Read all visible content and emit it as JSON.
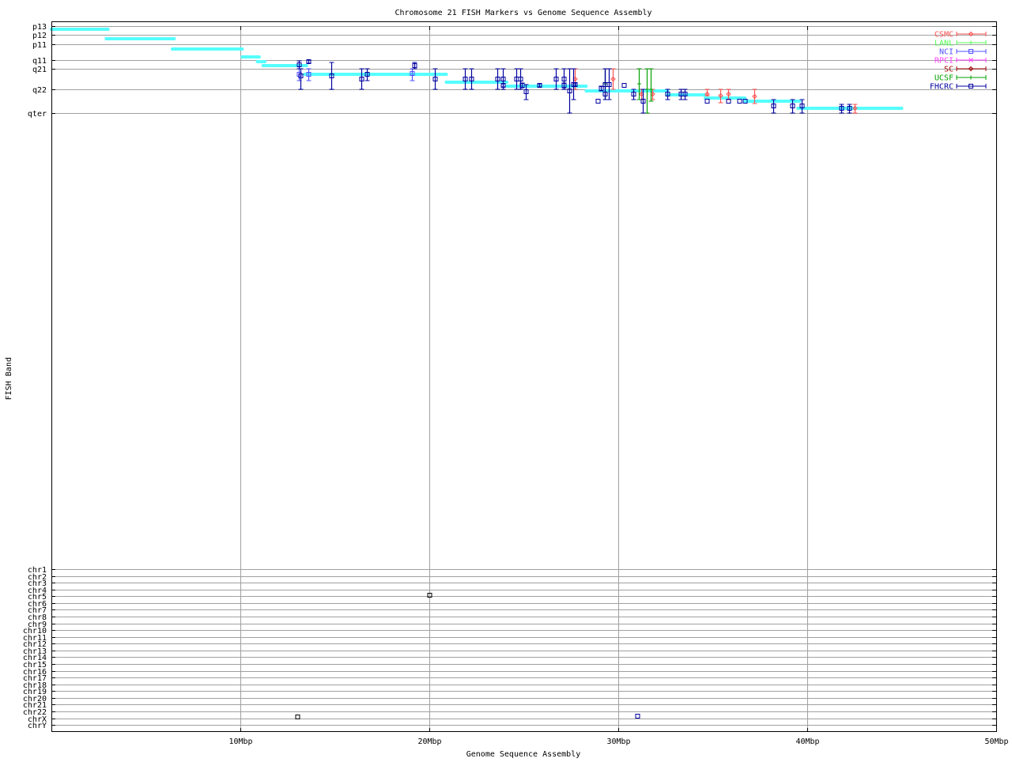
{
  "chart_data": {
    "type": "scatter",
    "title": "Chromosome 21 FISH Markers vs Genome Sequence Assembly",
    "xlabel": "Genome Sequence Assembly",
    "ylabel": "FISH Band",
    "xlim": [
      0,
      50
    ],
    "ylim": [
      0,
      893
    ],
    "y_reversed": true,
    "grid": true,
    "legend_position": "top-right",
    "xticks": [
      {
        "value": 10,
        "label": "10Mbp"
      },
      {
        "value": 20,
        "label": "20Mbp"
      },
      {
        "value": 30,
        "label": "30Mbp"
      },
      {
        "value": 40,
        "label": "40Mbp"
      },
      {
        "value": 50,
        "label": "50Mbp"
      }
    ],
    "yticks": [
      {
        "value": 0,
        "label": "p13"
      },
      {
        "value": 11,
        "label": "p12"
      },
      {
        "value": 23,
        "label": "p11"
      },
      {
        "value": 43,
        "label": "q11"
      },
      {
        "value": 54,
        "label": "q21"
      },
      {
        "value": 80,
        "label": "q22"
      },
      {
        "value": 110,
        "label": "qter"
      },
      {
        "value": 687,
        "label": "chr1"
      },
      {
        "value": 695.6,
        "label": "chr2"
      },
      {
        "value": 704.1,
        "label": "chr3"
      },
      {
        "value": 712.7,
        "label": "chr4"
      },
      {
        "value": 721.3,
        "label": "chr5"
      },
      {
        "value": 729.8,
        "label": "chr6"
      },
      {
        "value": 738.4,
        "label": "chr7"
      },
      {
        "value": 747,
        "label": "chr8"
      },
      {
        "value": 755.6,
        "label": "chr9"
      },
      {
        "value": 764.1,
        "label": "chr10"
      },
      {
        "value": 772.7,
        "label": "chr11"
      },
      {
        "value": 781.3,
        "label": "chr12"
      },
      {
        "value": 789.8,
        "label": "chr13"
      },
      {
        "value": 798.4,
        "label": "chr14"
      },
      {
        "value": 807,
        "label": "chr15"
      },
      {
        "value": 815.6,
        "label": "chr16"
      },
      {
        "value": 824.1,
        "label": "chr17"
      },
      {
        "value": 832.7,
        "label": "chr18"
      },
      {
        "value": 841.3,
        "label": "chr19"
      },
      {
        "value": 849.8,
        "label": "chr20"
      },
      {
        "value": 858.4,
        "label": "chr21"
      },
      {
        "value": 867,
        "label": "chr22"
      },
      {
        "value": 875.6,
        "label": "chrX"
      },
      {
        "value": 884.1,
        "label": "chrY"
      }
    ],
    "assembly_color": "#55ffff",
    "assembly_segments": [
      {
        "x0": 0.0,
        "x1": 3.0,
        "y": 4
      },
      {
        "x0": 2.9,
        "x1": 6.5,
        "y": 16
      },
      {
        "x0": 6.4,
        "x1": 10.1,
        "y": 29
      },
      {
        "x0": 10.1,
        "x1": 11.0,
        "y": 39
      },
      {
        "x0": 10.9,
        "x1": 11.3,
        "y": 45
      },
      {
        "x0": 11.2,
        "x1": 13.5,
        "y": 50
      },
      {
        "x0": 13.4,
        "x1": 20.9,
        "y": 61
      },
      {
        "x0": 20.9,
        "x1": 24.1,
        "y": 71
      },
      {
        "x0": 24.1,
        "x1": 28.3,
        "y": 76
      },
      {
        "x0": 28.3,
        "x1": 32.6,
        "y": 82
      },
      {
        "x0": 32.6,
        "x1": 34.6,
        "y": 87
      },
      {
        "x0": 34.6,
        "x1": 36.7,
        "y": 91
      },
      {
        "x0": 36.7,
        "x1": 39.6,
        "y": 95
      },
      {
        "x0": 39.5,
        "x1": 45.0,
        "y": 104
      }
    ],
    "series": [
      {
        "name": "CSMC",
        "color": "#ff5050",
        "marker": "diamond",
        "points": [
          {
            "x": 27.7,
            "y": 67,
            "ylo": 54,
            "yhi": 80
          },
          {
            "x": 29.7,
            "y": 67,
            "ylo": 54,
            "yhi": 80
          },
          {
            "x": 31.2,
            "y": 86,
            "ylo": 80,
            "yhi": 93
          },
          {
            "x": 31.8,
            "y": 86,
            "ylo": 80,
            "yhi": 93
          },
          {
            "x": 34.7,
            "y": 86,
            "ylo": 80,
            "yhi": 88
          },
          {
            "x": 35.4,
            "y": 88,
            "ylo": 80,
            "yhi": 97
          },
          {
            "x": 35.8,
            "y": 86,
            "ylo": 80,
            "yhi": 93
          },
          {
            "x": 37.2,
            "y": 89,
            "ylo": 80,
            "yhi": 98
          },
          {
            "x": 42.5,
            "y": 104,
            "ylo": 99,
            "yhi": 110
          }
        ]
      },
      {
        "name": "LANL",
        "color": "#50ff50",
        "marker": "plus",
        "points": []
      },
      {
        "name": "NCI",
        "color": "#5050ff",
        "marker": "square",
        "points": [
          {
            "x": 13.1,
            "y": 61,
            "ylo": 54,
            "yhi": 69
          },
          {
            "x": 13.6,
            "y": 61,
            "ylo": 54,
            "yhi": 69
          },
          {
            "x": 19.1,
            "y": 60,
            "ylo": 54,
            "yhi": 69
          }
        ]
      },
      {
        "name": "RPCI",
        "color": "#ff40ff",
        "marker": "cross",
        "points": []
      },
      {
        "name": "SC",
        "color": "#a00000",
        "marker": "diamond",
        "points": []
      },
      {
        "name": "UCSF",
        "color": "#00a000",
        "marker": "plus",
        "points": [
          {
            "x": 29.3,
            "y": 73,
            "ylo": 54,
            "yhi": 93
          },
          {
            "x": 31.1,
            "y": 73,
            "ylo": 54,
            "yhi": 93
          },
          {
            "x": 31.5,
            "y": 80,
            "ylo": 54,
            "yhi": 110
          },
          {
            "x": 31.7,
            "y": 80,
            "ylo": 54,
            "yhi": 95
          }
        ]
      },
      {
        "name": "FHCRC",
        "color": "#0000a0",
        "marker": "square",
        "points": [
          {
            "x": 13.1,
            "y": 49,
            "ylo": 44,
            "yhi": 54
          },
          {
            "x": 13.2,
            "y": 63,
            "ylo": 54,
            "yhi": 80
          },
          {
            "x": 13.6,
            "y": 45,
            "ylo": 43,
            "yhi": 47
          },
          {
            "x": 14.8,
            "y": 63,
            "ylo": 46,
            "yhi": 80
          },
          {
            "x": 16.4,
            "y": 67,
            "ylo": 54,
            "yhi": 80
          },
          {
            "x": 16.7,
            "y": 61,
            "ylo": 54,
            "yhi": 69
          },
          {
            "x": 19.2,
            "y": 50,
            "ylo": 46,
            "yhi": 54
          },
          {
            "x": 20.3,
            "y": 67,
            "ylo": 54,
            "yhi": 80
          },
          {
            "x": 21.9,
            "y": 67,
            "ylo": 54,
            "yhi": 80
          },
          {
            "x": 22.2,
            "y": 67,
            "ylo": 54,
            "yhi": 80
          },
          {
            "x": 23.6,
            "y": 67,
            "ylo": 54,
            "yhi": 80
          },
          {
            "x": 23.9,
            "y": 67,
            "ylo": 54,
            "yhi": 80
          },
          {
            "x": 23.9,
            "y": 75,
            "ylo": 73,
            "yhi": 77
          },
          {
            "x": 24.6,
            "y": 67,
            "ylo": 54,
            "yhi": 80
          },
          {
            "x": 24.8,
            "y": 67,
            "ylo": 54,
            "yhi": 80
          },
          {
            "x": 24.9,
            "y": 75,
            "ylo": 72,
            "yhi": 78
          },
          {
            "x": 25.1,
            "y": 83,
            "ylo": 74,
            "yhi": 93
          },
          {
            "x": 25.8,
            "y": 75,
            "ylo": 73,
            "yhi": 77
          },
          {
            "x": 26.7,
            "y": 67,
            "ylo": 54,
            "yhi": 80
          },
          {
            "x": 27.1,
            "y": 67,
            "ylo": 54,
            "yhi": 80
          },
          {
            "x": 27.1,
            "y": 75,
            "ylo": 72,
            "yhi": 78
          },
          {
            "x": 27.4,
            "y": 82,
            "ylo": 54,
            "yhi": 110
          },
          {
            "x": 27.6,
            "y": 74,
            "ylo": 54,
            "yhi": 93
          },
          {
            "x": 27.7,
            "y": 74,
            "ylo": 72,
            "yhi": 76
          },
          {
            "x": 28.9,
            "y": 95,
            "ylo": 95,
            "yhi": 95
          },
          {
            "x": 29.1,
            "y": 79,
            "ylo": 76,
            "yhi": 82
          },
          {
            "x": 29.3,
            "y": 86,
            "ylo": 54,
            "yhi": 93
          },
          {
            "x": 29.3,
            "y": 74,
            "ylo": 54,
            "yhi": 93
          },
          {
            "x": 29.5,
            "y": 74,
            "ylo": 54,
            "yhi": 93
          },
          {
            "x": 30.3,
            "y": 75,
            "ylo": 75,
            "yhi": 75
          },
          {
            "x": 30.8,
            "y": 86,
            "ylo": 80,
            "yhi": 93
          },
          {
            "x": 31.3,
            "y": 95,
            "ylo": 80,
            "yhi": 110
          },
          {
            "x": 32.6,
            "y": 86,
            "ylo": 80,
            "yhi": 93
          },
          {
            "x": 33.3,
            "y": 86,
            "ylo": 80,
            "yhi": 93
          },
          {
            "x": 33.5,
            "y": 86,
            "ylo": 80,
            "yhi": 93
          },
          {
            "x": 34.7,
            "y": 95,
            "ylo": 95,
            "yhi": 95
          },
          {
            "x": 35.8,
            "y": 95,
            "ylo": 95,
            "yhi": 95
          },
          {
            "x": 36.4,
            "y": 95,
            "ylo": 95,
            "yhi": 95
          },
          {
            "x": 36.7,
            "y": 95,
            "ylo": 95,
            "yhi": 95
          },
          {
            "x": 38.2,
            "y": 101,
            "ylo": 93,
            "yhi": 110
          },
          {
            "x": 39.2,
            "y": 101,
            "ylo": 93,
            "yhi": 110
          },
          {
            "x": 39.7,
            "y": 101,
            "ylo": 93,
            "yhi": 110
          },
          {
            "x": 41.8,
            "y": 104,
            "ylo": 99,
            "yhi": 110
          },
          {
            "x": 42.2,
            "y": 104,
            "ylo": 99,
            "yhi": 110
          },
          {
            "x": 31.0,
            "y": 873,
            "ylo": 873,
            "yhi": 873
          }
        ]
      }
    ],
    "other_hits": [
      {
        "x": 20.0,
        "y": 720,
        "color": "#000000"
      },
      {
        "x": 13.0,
        "y": 874,
        "color": "#000000"
      }
    ]
  }
}
